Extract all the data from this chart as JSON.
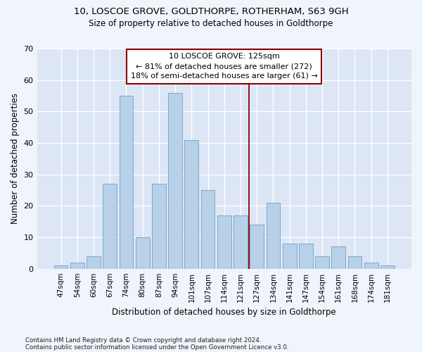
{
  "title_line1": "10, LOSCOE GROVE, GOLDTHORPE, ROTHERHAM, S63 9GH",
  "title_line2": "Size of property relative to detached houses in Goldthorpe",
  "xlabel": "Distribution of detached houses by size in Goldthorpe",
  "ylabel": "Number of detached properties",
  "categories": [
    "47sqm",
    "54sqm",
    "60sqm",
    "67sqm",
    "74sqm",
    "80sqm",
    "87sqm",
    "94sqm",
    "101sqm",
    "107sqm",
    "114sqm",
    "121sqm",
    "127sqm",
    "134sqm",
    "141sqm",
    "147sqm",
    "154sqm",
    "161sqm",
    "168sqm",
    "174sqm",
    "181sqm"
  ],
  "values": [
    1,
    2,
    4,
    27,
    55,
    10,
    27,
    56,
    41,
    25,
    17,
    17,
    14,
    21,
    8,
    8,
    4,
    7,
    4,
    2,
    1
  ],
  "bar_color": "#b8d0e8",
  "bar_edge_color": "#7aaacf",
  "fig_bg_color": "#f0f4fb",
  "ax_bg_color": "#dce6f5",
  "grid_color": "#ffffff",
  "ylim": [
    0,
    70
  ],
  "yticks": [
    0,
    10,
    20,
    30,
    40,
    50,
    60,
    70
  ],
  "property_label": "10 LOSCOE GROVE: 125sqm",
  "annotation_line1": "← 81% of detached houses are smaller (272)",
  "annotation_line2": "18% of semi-detached houses are larger (61) →",
  "vline_bar_index": 11,
  "footnote1": "Contains HM Land Registry data © Crown copyright and database right 2024.",
  "footnote2": "Contains public sector information licensed under the Open Government Licence v3.0."
}
